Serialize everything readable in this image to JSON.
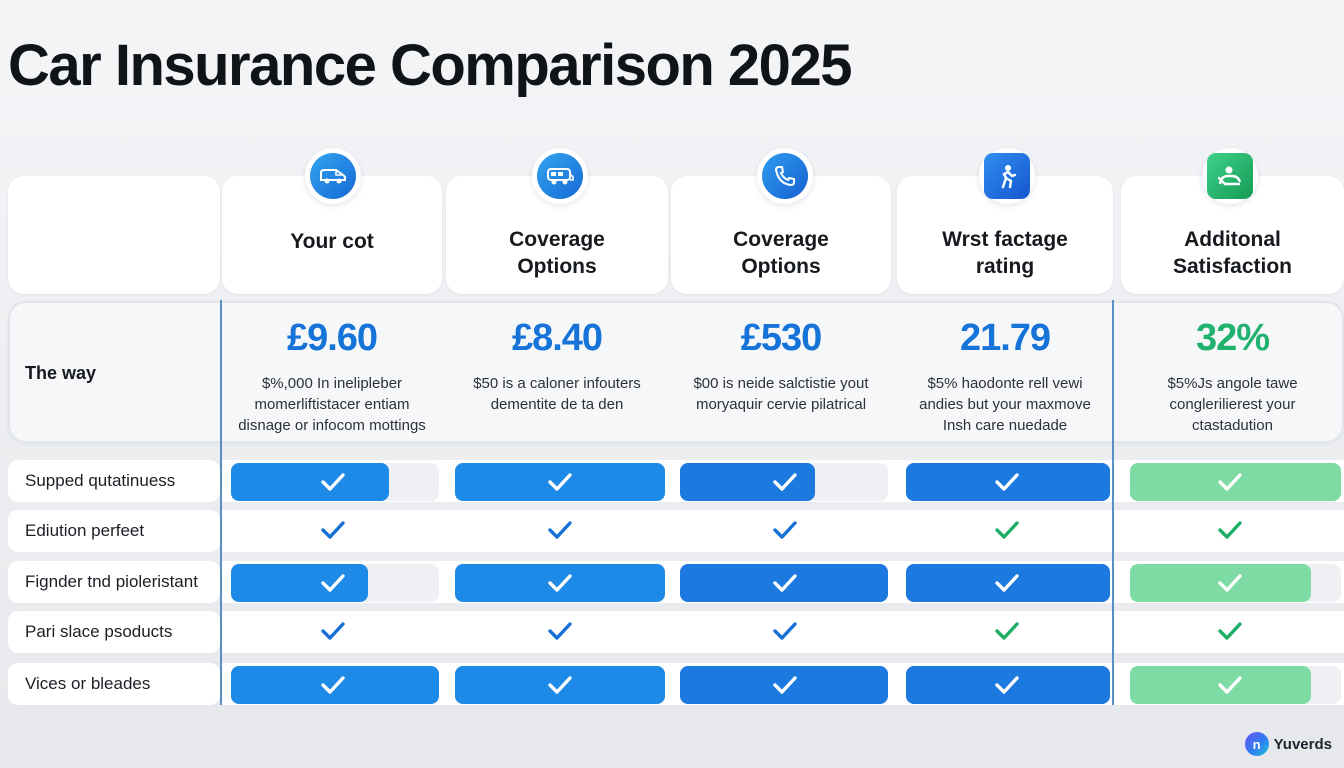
{
  "title": "Car Insurance Comparison 2025",
  "colors": {
    "blue": "#1e8ae8",
    "blue_dark": "#1b79df",
    "green": "#7ddba3",
    "green_check": "#1dae66",
    "price_blue": "#1673d8",
    "price_green": "#21b26f"
  },
  "columns": [
    {
      "icon": "van-icon",
      "header_lines": [
        "Your cot"
      ],
      "price": "£9.60",
      "desc_lines": [
        "$%,000 In inelipleber",
        "momerliftistacer entiam",
        "disnage or infocom mottings"
      ]
    },
    {
      "icon": "camper-van-icon",
      "header_lines": [
        "Coverage",
        "Options"
      ],
      "price": "£8.40",
      "desc_lines": [
        "$50 is a caloner infouters",
        "dementite de ta den"
      ]
    },
    {
      "icon": "phone-support-icon",
      "header_lines": [
        "Coverage",
        "Options"
      ],
      "price": "£530",
      "desc_lines": [
        "$00 is neide salctistie yout",
        "moryaquir cervie pilatrical"
      ]
    },
    {
      "icon": "person-rating-icon",
      "header_lines": [
        "Wrst factage",
        "rating"
      ],
      "price": "21.79",
      "desc_lines": [
        "$5% haodonte rell vewi",
        "andies but your maxmove",
        "Insh care nuedade"
      ]
    },
    {
      "icon": "satisfaction-icon",
      "header_lines": [
        "Additonal",
        "Satisfaction"
      ],
      "price": "32%",
      "desc_lines": [
        "$5%Js angole tawe",
        "conglerilierest your",
        "ctastadution"
      ]
    }
  ],
  "price_row_label": "The way",
  "rows": [
    {
      "label": "Supped qutatinuess",
      "style": "bar",
      "levels": [
        0.76,
        1.0,
        0.65,
        1.0,
        1.0
      ]
    },
    {
      "label": "Ediution perfeet",
      "style": "plain",
      "levels": [
        1,
        1,
        1,
        1,
        1
      ]
    },
    {
      "label": "Fignder tnd pioleristant",
      "style": "bar",
      "levels": [
        0.66,
        1.0,
        1.0,
        1.0,
        0.86
      ]
    },
    {
      "label": "Pari slace psoducts",
      "style": "plain",
      "levels": [
        1,
        1,
        1,
        1,
        1
      ]
    },
    {
      "label": "Vices or bleades",
      "style": "bar",
      "levels": [
        1.0,
        1.0,
        1.0,
        1.0,
        0.86
      ]
    }
  ],
  "logo": {
    "mark": "n",
    "text": "Yuverds"
  }
}
